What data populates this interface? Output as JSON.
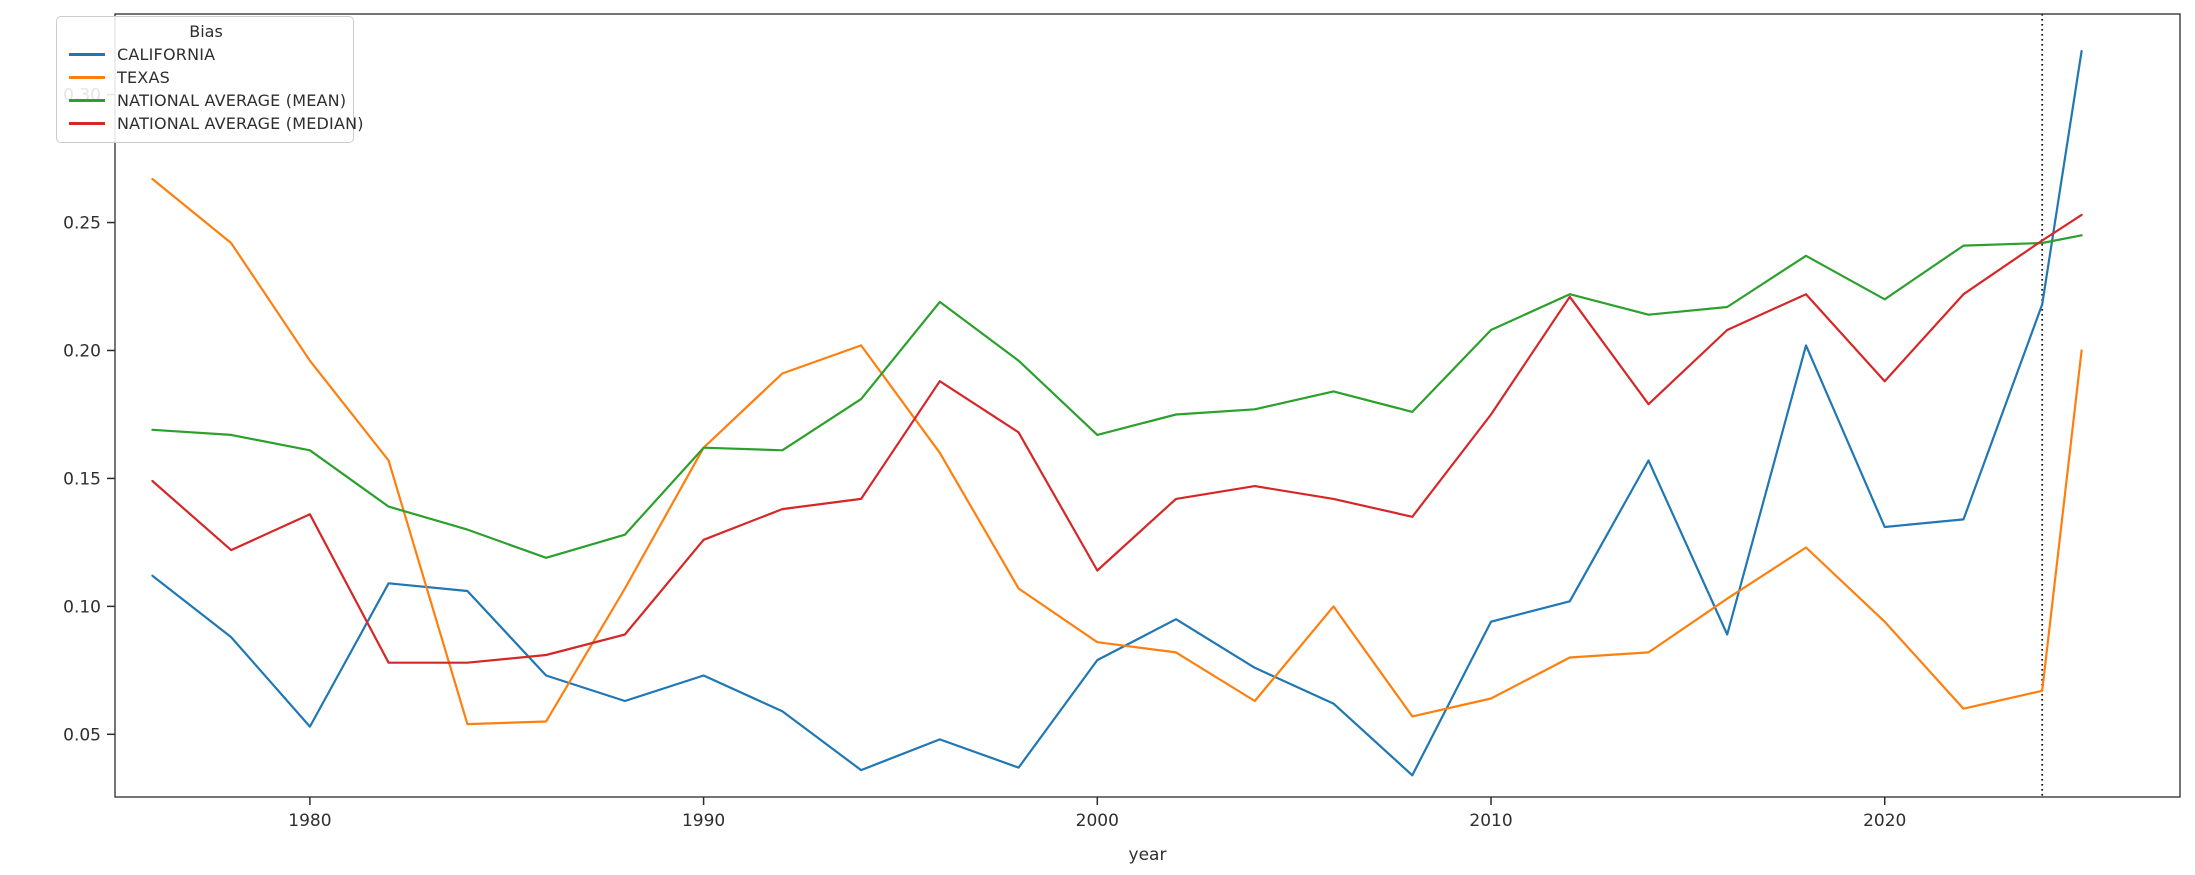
{
  "figure": {
    "background": "#ffffff",
    "frame_color": "#2b2b2b",
    "text_color": "#2e2e2e"
  },
  "chart_data": {
    "type": "line",
    "title": "",
    "xlabel": "year",
    "ylabel": "",
    "grid": false,
    "legend": {
      "title": "Bias",
      "position": "upper-left"
    },
    "x": [
      1976,
      1978,
      1980,
      1982,
      1984,
      1986,
      1988,
      1990,
      1992,
      1994,
      1996,
      1998,
      2000,
      2002,
      2004,
      2006,
      2008,
      2010,
      2012,
      2014,
      2016,
      2018,
      2020,
      2022,
      2024,
      2025
    ],
    "series": [
      {
        "name": "CALIFORNIA",
        "color": "#1f77b4",
        "values": [
          0.112,
          0.088,
          0.053,
          0.109,
          0.106,
          0.073,
          0.063,
          0.073,
          0.059,
          0.036,
          0.048,
          0.037,
          0.079,
          0.095,
          0.076,
          0.062,
          0.034,
          0.094,
          0.102,
          0.157,
          0.089,
          0.202,
          0.131,
          0.134,
          0.218,
          0.317
        ]
      },
      {
        "name": "TEXAS",
        "color": "#ff7f0e",
        "values": [
          0.267,
          0.242,
          0.196,
          0.157,
          0.054,
          0.055,
          0.107,
          0.162,
          0.191,
          0.202,
          0.16,
          0.107,
          0.086,
          0.082,
          0.063,
          0.1,
          0.057,
          0.064,
          0.08,
          0.082,
          0.103,
          0.123,
          0.094,
          0.06,
          0.067,
          0.2
        ]
      },
      {
        "name": "NATIONAL AVERAGE (MEAN)",
        "color": "#2ca02c",
        "values": [
          0.169,
          0.167,
          0.161,
          0.139,
          0.13,
          0.119,
          0.128,
          0.162,
          0.161,
          0.181,
          0.219,
          0.196,
          0.167,
          0.175,
          0.177,
          0.184,
          0.176,
          0.208,
          0.222,
          0.214,
          0.217,
          0.237,
          0.22,
          0.241,
          0.242,
          0.245
        ]
      },
      {
        "name": "NATIONAL AVERAGE (MEDIAN)",
        "color": "#d62728",
        "values": [
          0.149,
          0.122,
          0.136,
          0.078,
          0.078,
          0.081,
          0.089,
          0.126,
          0.138,
          0.142,
          0.188,
          0.168,
          0.114,
          0.142,
          0.147,
          0.142,
          0.135,
          0.175,
          0.221,
          0.179,
          0.208,
          0.222,
          0.188,
          0.222,
          0.243,
          0.253
        ]
      }
    ],
    "x_ticks": [
      1980,
      1990,
      2000,
      2010,
      2020
    ],
    "x_tick_labels": [
      "1980",
      "1990",
      "2000",
      "2010",
      "2020"
    ],
    "y_ticks": [
      0.05,
      0.1,
      0.15,
      0.2,
      0.25,
      0.3
    ],
    "y_tick_labels": [
      "0.05",
      "0.10",
      "0.15",
      "0.20",
      "0.25",
      "0.30"
    ],
    "xlim": [
      1975.05,
      2027.5
    ],
    "ylim": [
      0.0255,
      0.3315
    ],
    "vline": {
      "x": 2024,
      "color": "#111111",
      "style": "dotted"
    }
  }
}
